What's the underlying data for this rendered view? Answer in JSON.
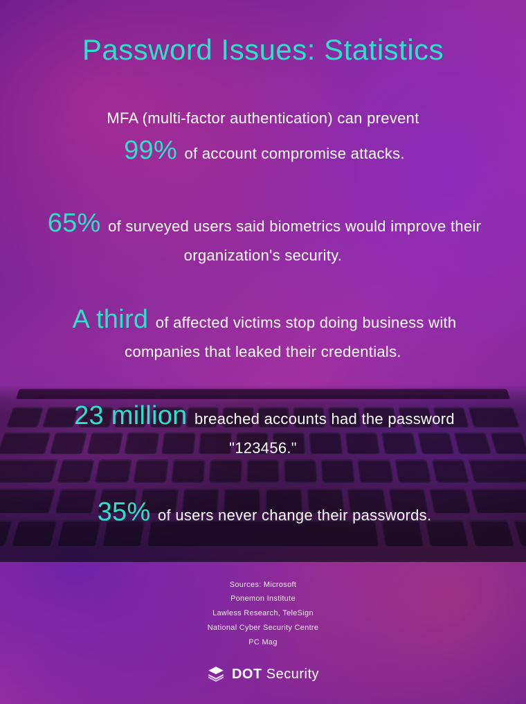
{
  "colors": {
    "title": "#2de0c8",
    "highlight": "#2de0c8",
    "body_text": "#ffffff"
  },
  "typography": {
    "title_fontsize": 42,
    "body_fontsize": 22,
    "highlight_fontsize": 38,
    "sources_fontsize": 11,
    "font_weight_light": 300
  },
  "title": "Password Issues: Statistics",
  "stats": [
    {
      "pre": "MFA (multi-factor authentication) can prevent",
      "highlight": "99%",
      "post": "of account compromise attacks.",
      "break_before_highlight": true
    },
    {
      "pre": "",
      "highlight": "65%",
      "post": "of surveyed users said biometrics would improve their organization's security.",
      "break_before_highlight": false
    },
    {
      "pre": "",
      "highlight": "A third",
      "post": "of affected victims stop doing business with companies that leaked their credentials.",
      "break_before_highlight": false
    },
    {
      "pre": "",
      "highlight": "23 million",
      "post": "breached accounts had the password \"123456.\"",
      "break_before_highlight": false
    },
    {
      "pre": "",
      "highlight": "35%",
      "post": "of users never change their passwords.",
      "break_before_highlight": false
    }
  ],
  "sources_label": "Sources: Microsoft",
  "sources": [
    "Ponemon Institute",
    "Lawless Research, TeleSign",
    "National Cyber Security Centre",
    "PC Mag"
  ],
  "brand": {
    "bold": "DOT",
    "light": " Security"
  }
}
